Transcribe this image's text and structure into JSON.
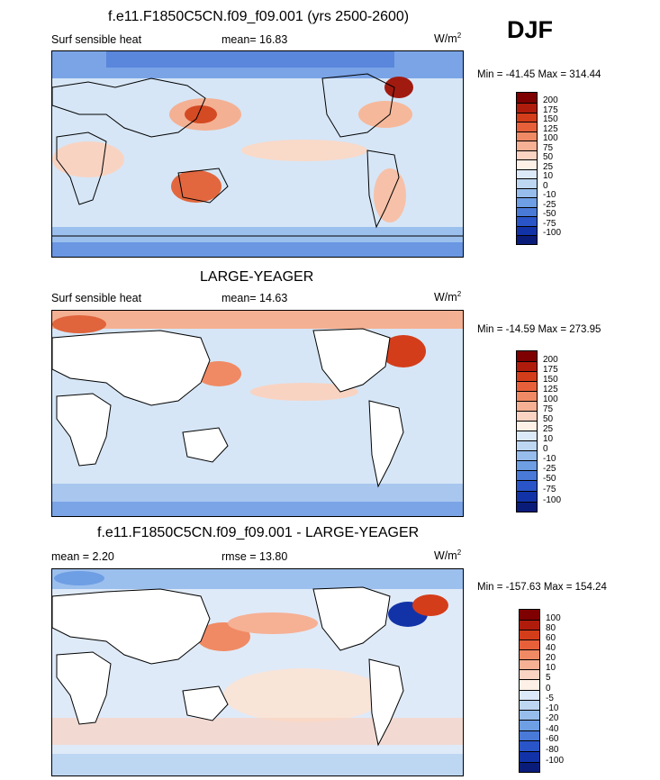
{
  "season": "DJF",
  "units_base": "W/m",
  "units_exp": "2",
  "panels": [
    {
      "title": "f.e11.F1850C5CN.f09_f09.001 (yrs 2500-2600)",
      "left_label": "Surf sensible heat",
      "stat_label": "mean=  16.83",
      "minmax": "Min = -41.45 Max = 314.44",
      "colorbar": [
        "200",
        "175",
        "150",
        "125",
        "100",
        "75",
        "50",
        "25",
        "10",
        "0",
        "-10",
        "-25",
        "-50",
        "-75",
        "-100"
      ]
    },
    {
      "title": "LARGE-YEAGER",
      "left_label": "Surf sensible heat",
      "stat_label": "mean=  14.63",
      "minmax": "Min = -14.59 Max = 273.95",
      "colorbar": [
        "200",
        "175",
        "150",
        "125",
        "100",
        "75",
        "50",
        "25",
        "10",
        "0",
        "-10",
        "-25",
        "-50",
        "-75",
        "-100"
      ]
    },
    {
      "title": "f.e11.F1850C5CN.f09_f09.001 - LARGE-YEAGER",
      "left_label": "mean =   2.20",
      "stat_label": "rmse =  13.80",
      "minmax": "Min = -157.63 Max = 154.24",
      "colorbar": [
        "100",
        "80",
        "60",
        "40",
        "20",
        "10",
        "5",
        "0",
        "-5",
        "-10",
        "-20",
        "-40",
        "-60",
        "-80",
        "-100"
      ]
    }
  ],
  "colors": {
    "bar16": [
      "#7f0000",
      "#b01c0c",
      "#d43d1a",
      "#e8603a",
      "#f08a64",
      "#f6b094",
      "#fad3c2",
      "#fdf0e6",
      "#dce9f8",
      "#bdd6f2",
      "#97bdec",
      "#6e9ee4",
      "#4a7ad8",
      "#2a55c8",
      "#1233a8",
      "#0a1c7a"
    ]
  }
}
